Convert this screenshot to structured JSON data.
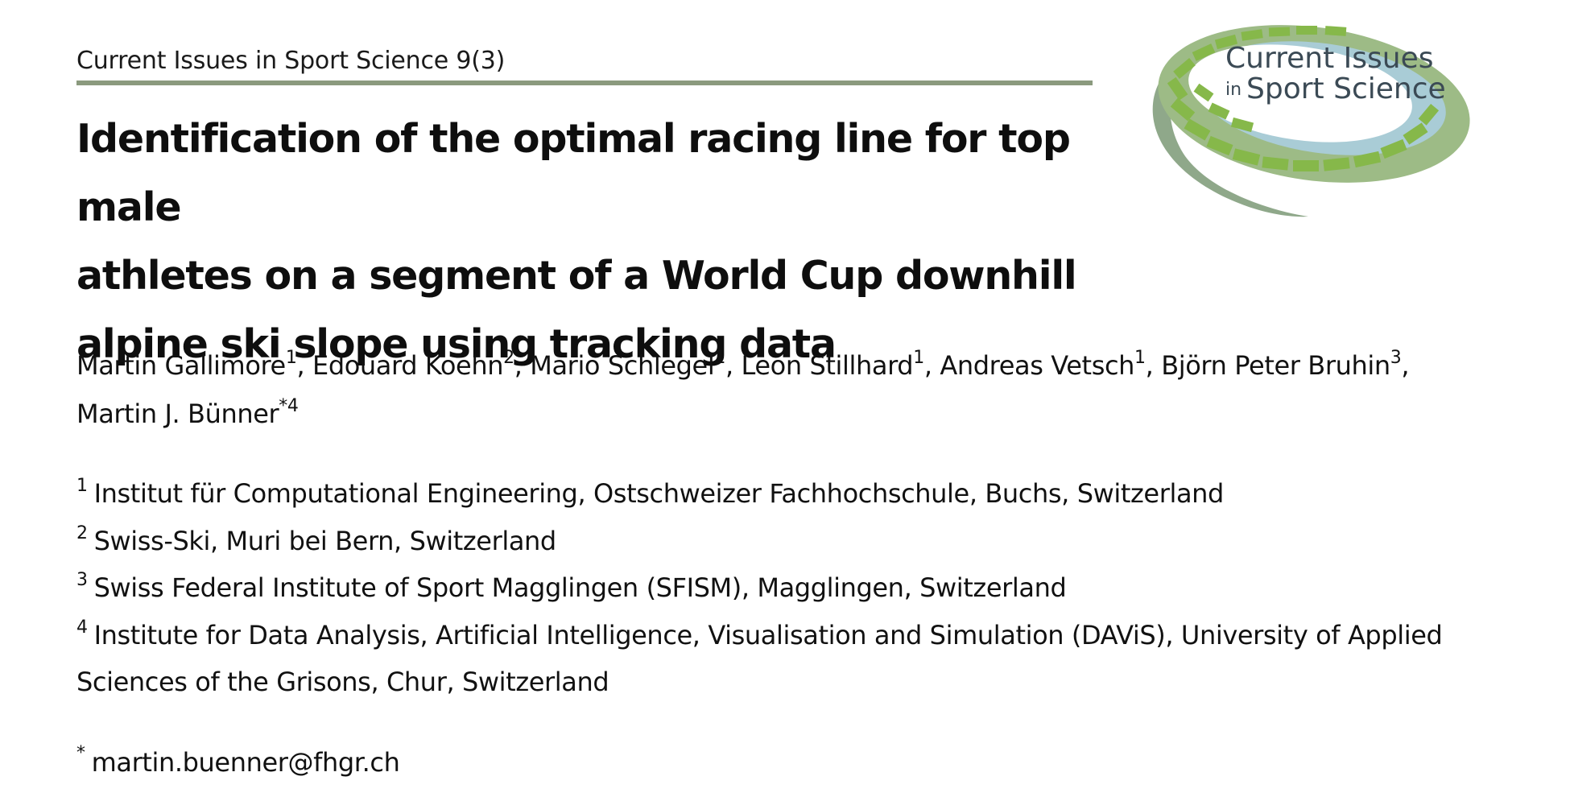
{
  "header": {
    "journal_citation": "Current Issues in Sport Science 9(3)"
  },
  "logo": {
    "line1": "Current Issues",
    "line2_small": "in",
    "line2": "Sport Science",
    "colors": {
      "ring_green": "#88b84a",
      "ring_gray": "#8fa88a",
      "inner_blue": "#a9ccd6",
      "text": "#3b4a55"
    },
    "icon": "stadium-ring-logo"
  },
  "title": {
    "line1": "Identification of the optimal racing line for top male",
    "line2": "athletes on a segment of a World Cup downhill",
    "line3": "alpine ski slope using tracking data"
  },
  "authors": [
    {
      "name": "Martin Gallimore",
      "sup": "1",
      "sep": ", "
    },
    {
      "name": "Edouard Koehn",
      "sup": "2",
      "sep": ", "
    },
    {
      "name": "Mario Schlegel",
      "sup": "1",
      "sep": ", "
    },
    {
      "name": "Leon Stillhard",
      "sup": "1",
      "sep": ", "
    },
    {
      "name": "Andreas Vetsch",
      "sup": "1",
      "sep": ", "
    },
    {
      "name": "Björn Peter Bruhin",
      "sup": "3",
      "sep": ", "
    },
    {
      "name": "Martin J. Bünner",
      "sup": "*4",
      "sep": ""
    }
  ],
  "affiliations": [
    {
      "num": "1",
      "text": "Institut für Computational Engineering, Ostschweizer Fachhochschule, Buchs, Switzerland"
    },
    {
      "num": "2",
      "text": "Swiss-Ski, Muri bei Bern, Switzerland"
    },
    {
      "num": "3",
      "text": "Swiss Federal Institute of Sport Magglingen (SFISM), Magglingen, Switzerland"
    },
    {
      "num": "4",
      "text": "Institute for Data Analysis, Artificial Intelligence, Visualisation and Simulation (DAViS), University of Applied Sciences of the Grisons, Chur, Switzerland"
    }
  ],
  "correspondence": {
    "mark": "*",
    "email": "martin.buenner@fhgr.ch"
  }
}
